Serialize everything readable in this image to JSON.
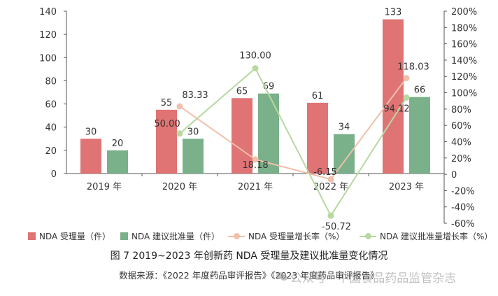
{
  "chart_data": {
    "type": "bar",
    "categories": [
      "2019 年",
      "2020 年",
      "2021 年",
      "2022 年",
      "2023 年"
    ],
    "bar_series": [
      {
        "name": "NDA 受理量（件）",
        "values": [
          30,
          55,
          65,
          61,
          133
        ],
        "color": "#e07373"
      },
      {
        "name": "NDA 建议批准量（件）",
        "values": [
          20,
          30,
          69,
          34,
          66
        ],
        "color": "#7ab08a"
      }
    ],
    "line_series": [
      {
        "name": "NDA 受理量增长率（%）",
        "values": [
          null,
          83.33,
          18.18,
          -6.15,
          118.03
        ],
        "labels": [
          "",
          "83.33",
          "18.18",
          "-6.15",
          "118.03"
        ],
        "color": "#f2bfab"
      },
      {
        "name": "NDA 建议批准量增长率（%）",
        "values": [
          null,
          50.0,
          130.0,
          -50.72,
          94.12
        ],
        "labels": [
          "",
          "50.00",
          "130.00",
          "-50.72",
          "94.12"
        ],
        "color": "#b6d9a0"
      }
    ],
    "y_left": {
      "min": 0,
      "max": 140,
      "ticks": [
        "0",
        "20",
        "40",
        "60",
        "80",
        "100",
        "120",
        "140"
      ]
    },
    "y_right": {
      "min": -60,
      "max": 200,
      "ticks": [
        "-60%",
        "-40%",
        "-20%",
        "0",
        "20%",
        "40%",
        "60%",
        "80%",
        "100%",
        "120%",
        "140%",
        "160%",
        "180%",
        "200%"
      ]
    },
    "grid": false,
    "legend_position": "bottom"
  },
  "legend": [
    {
      "label": "NDA 受理量（件）",
      "kind": "bar",
      "color": "#e07373"
    },
    {
      "label": "NDA 建议批准量（件）",
      "kind": "bar",
      "color": "#7ab08a"
    },
    {
      "label": "NDA 受理量增长率（%）",
      "kind": "line",
      "color": "#f2bfab"
    },
    {
      "label": "NDA 建议批准量增长率（%）",
      "kind": "line",
      "color": "#b6d9a0"
    }
  ],
  "figure_caption": "图 7   2019~2023 年创新药 NDA 受理量及建议批准量变化情况",
  "source_caption": "数据来源：《2022 年度药品审评报告》《2023 年度药品审评报告》",
  "watermark": "公众号 · 中国食品药品监管杂志"
}
